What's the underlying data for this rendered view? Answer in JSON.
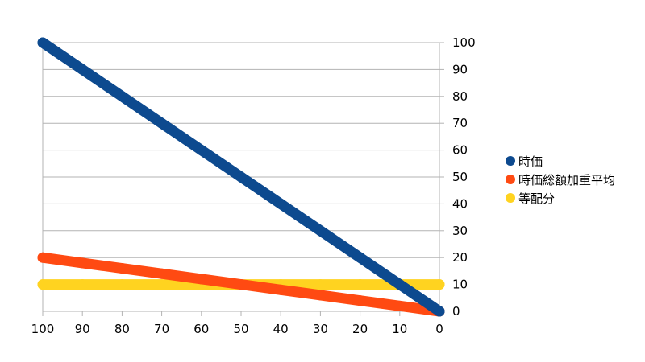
{
  "chart_data": {
    "type": "line",
    "x": [
      100,
      90,
      80,
      70,
      60,
      50,
      40,
      30,
      20,
      10,
      0
    ],
    "xlim": [
      100,
      0
    ],
    "ylim": [
      0,
      100
    ],
    "x_ticks": [
      "100",
      "90",
      "80",
      "70",
      "60",
      "50",
      "40",
      "30",
      "20",
      "10",
      "0"
    ],
    "y_ticks": [
      "0",
      "10",
      "20",
      "30",
      "40",
      "50",
      "60",
      "70",
      "80",
      "90",
      "100"
    ],
    "y_axis_side": "right",
    "grid": true,
    "legend_position": "right",
    "title": "",
    "xlabel": "",
    "ylabel": "",
    "series": [
      {
        "name": "時価",
        "color": "#0d4a8f",
        "values": [
          100,
          90,
          80,
          70,
          60,
          50,
          40,
          30,
          20,
          10,
          0
        ]
      },
      {
        "name": "時価総額加重平均",
        "color": "#ff4a12",
        "values": [
          20,
          18,
          16,
          14,
          12,
          10,
          8,
          6,
          4,
          2,
          0
        ]
      },
      {
        "name": "等配分",
        "color": "#ffd320",
        "values": [
          10,
          10,
          10,
          10,
          10,
          10,
          10,
          10,
          10,
          10,
          10
        ]
      }
    ]
  }
}
